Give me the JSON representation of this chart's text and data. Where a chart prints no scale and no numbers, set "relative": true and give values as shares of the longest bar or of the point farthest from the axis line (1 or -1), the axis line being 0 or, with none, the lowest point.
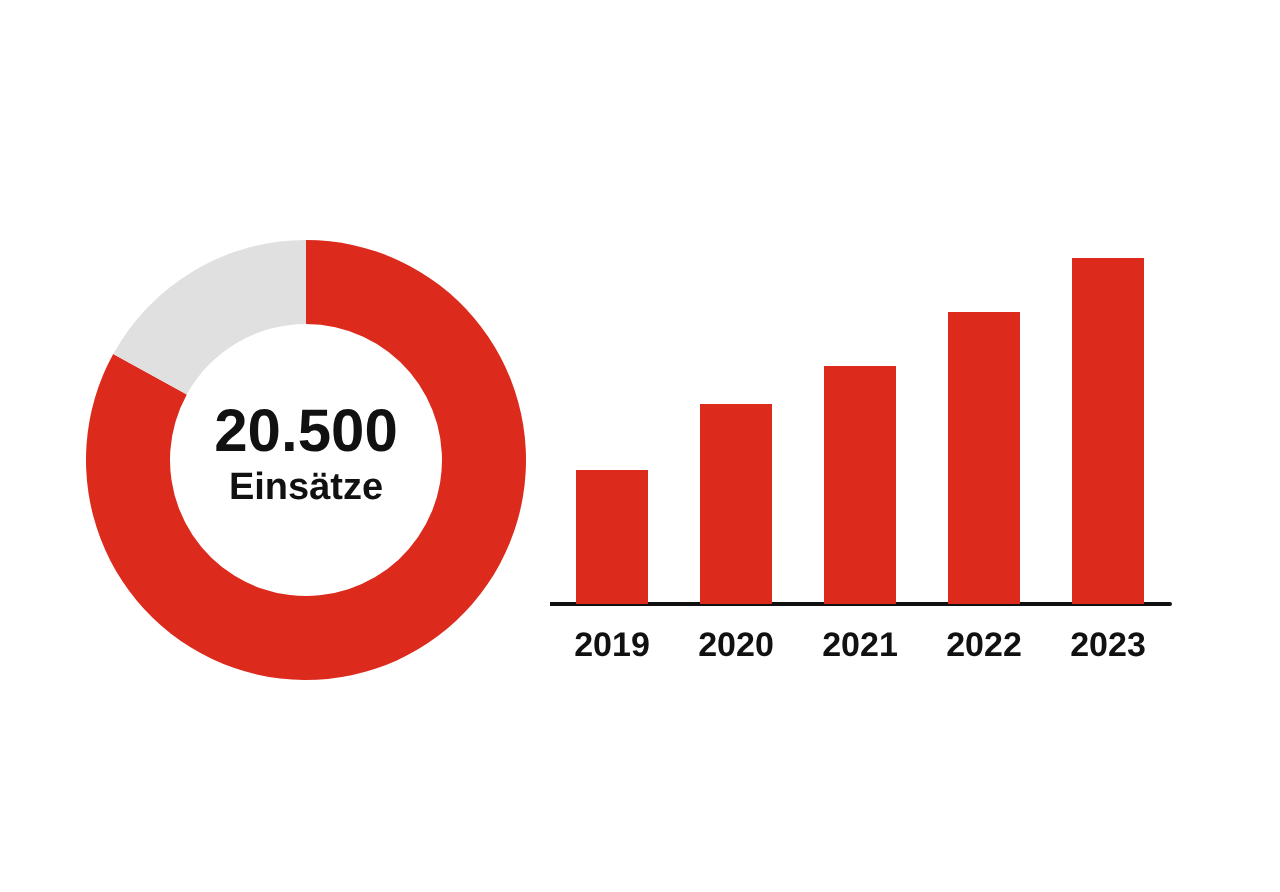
{
  "chart_data": [
    {
      "type": "donut",
      "categories": [
        null,
        null
      ],
      "values": [
        83,
        17
      ],
      "colors": [
        "#dc2a1c",
        "#e0e0e0"
      ],
      "annotations": [
        "20.500",
        "Einsätze"
      ]
    },
    {
      "type": "bar",
      "categories": [
        "2019",
        "2020",
        "2021",
        "2022",
        "2023"
      ],
      "values": [
        0.387,
        0.578,
        0.688,
        0.844,
        1
      ],
      "color": "#dc2a1c",
      "relative": true
    }
  ]
}
